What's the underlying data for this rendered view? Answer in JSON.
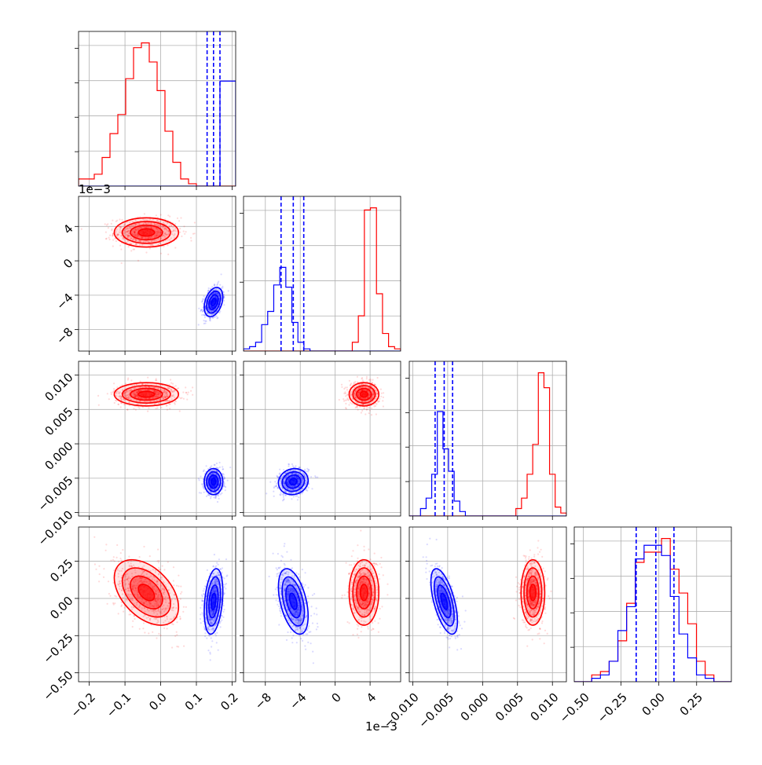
{
  "chart_data": {
    "type": "corner",
    "colors": {
      "red": "#ff0000",
      "blue": "#0000ff"
    },
    "parameters": [
      {
        "range": [
          -0.23,
          0.21
        ],
        "ticks": [
          -0.2,
          -0.1,
          0.0,
          0.1,
          0.2
        ],
        "tick_labels": [
          "−0.2",
          "−0.1",
          "0.0",
          "0.1",
          "0.2"
        ],
        "offset_text": ""
      },
      {
        "range": [
          -0.0105,
          0.0075
        ],
        "ticks": [
          -0.008,
          -0.004,
          0.0,
          0.004
        ],
        "tick_labels": [
          "−8",
          "−4",
          "0",
          "4"
        ],
        "offset_text": "1e−3"
      },
      {
        "range": [
          -0.0105,
          0.012
        ],
        "ticks": [
          -0.01,
          -0.005,
          0.0,
          0.005,
          0.01
        ],
        "tick_labels": [
          "−0.010",
          "−0.005",
          "0.000",
          "0.005",
          "0.010"
        ],
        "offset_text": ""
      },
      {
        "range": [
          -0.56,
          0.48
        ],
        "ticks": [
          -0.5,
          -0.25,
          0.0,
          0.25
        ],
        "tick_labels": [
          "−0.50",
          "−0.25",
          "0.00",
          "0.25"
        ],
        "offset_text": ""
      }
    ],
    "series": [
      {
        "color": "red",
        "means": [
          -0.04,
          0.0033,
          0.0072,
          0.04
        ],
        "stds": [
          0.045,
          0.00085,
          0.00085,
          0.11
        ],
        "correlations": {
          "3-0": -0.45,
          "3-1": 0.0,
          "3-2": 0.0,
          "1-0": 0.0,
          "2-0": 0.0,
          "2-1": 0.0
        },
        "quantile_lines": []
      },
      {
        "color": "blue",
        "means": [
          0.148,
          -0.0048,
          -0.0055,
          -0.02
        ],
        "stds": [
          0.013,
          0.00085,
          0.00095,
          0.11
        ],
        "correlations": {
          "3-0": 0.3,
          "3-1": -0.45,
          "3-2": -0.6,
          "1-0": 0.35,
          "2-0": 0.0,
          "2-1": 0.1
        },
        "quantile_lines": [
          [
            0.13,
            0.148,
            0.166
          ],
          [
            -0.0062,
            -0.0048,
            -0.0036
          ],
          [
            -0.0068,
            -0.0055,
            -0.0043
          ],
          [
            -0.15,
            -0.02,
            0.1
          ]
        ]
      }
    ],
    "histograms": [
      {
        "red": [
          3,
          3,
          5,
          12,
          22,
          30,
          45,
          58,
          60,
          52,
          40,
          23,
          10,
          3,
          1,
          0,
          0,
          0,
          0,
          0
        ],
        "blue": [
          0,
          0,
          0,
          0,
          0,
          0,
          0,
          0,
          0,
          0,
          0,
          0,
          0,
          0,
          0,
          0,
          0,
          0,
          44,
          44
        ]
      },
      {
        "red": [
          0,
          0,
          0,
          0,
          0,
          0,
          0,
          0,
          0,
          0,
          0,
          0,
          0,
          0,
          0,
          0,
          0,
          0,
          4,
          16,
          64,
          65,
          26,
          8,
          2,
          1
        ],
        "blue": [
          1,
          2,
          4,
          12,
          18,
          30,
          38,
          29,
          13,
          4,
          1,
          0,
          0,
          0,
          0,
          0,
          0,
          0,
          0,
          0,
          0,
          0,
          0,
          0,
          0,
          0
        ]
      },
      {
        "red": [
          0,
          0,
          0,
          0,
          0,
          0,
          0,
          0,
          0,
          0,
          0,
          0,
          0,
          0,
          0,
          0,
          0,
          0,
          0,
          5,
          12,
          28,
          48,
          96,
          86,
          28,
          6,
          2
        ],
        "blue": [
          0,
          0,
          5,
          12,
          28,
          70,
          45,
          30,
          10,
          3,
          0,
          0,
          0,
          0,
          0,
          0,
          0,
          0,
          0,
          0,
          0,
          0,
          0,
          0,
          0,
          0,
          0,
          0
        ]
      },
      {
        "red": [
          0,
          0,
          2,
          3,
          6,
          12,
          23,
          35,
          38,
          38,
          42,
          33,
          26,
          17,
          6,
          2,
          0,
          0
        ],
        "blue": [
          0,
          0,
          1,
          2,
          6,
          15,
          22,
          36,
          40,
          40,
          37,
          25,
          14,
          7,
          2,
          1,
          0,
          0
        ]
      }
    ]
  }
}
